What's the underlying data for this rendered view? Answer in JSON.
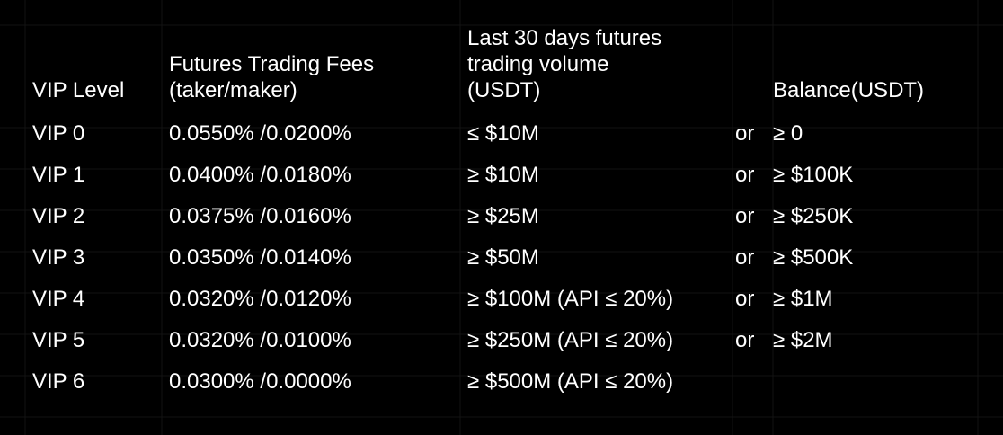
{
  "colors": {
    "background": "#000000",
    "text": "#ffffff",
    "gridlines": "#121212"
  },
  "table": {
    "headers": {
      "level": "VIP Level",
      "fees_line1": "Futures Trading Fees",
      "fees_line2": "(taker/maker)",
      "volume_line1": "Last 30 days futures",
      "volume_line2": "trading volume",
      "volume_line3": "(USDT)",
      "or": "",
      "balance": "Balance(USDT)"
    },
    "rows": [
      {
        "level": "VIP 0",
        "fees": "0.0550% /0.0200%",
        "volume": "≤ $10M",
        "or": "or",
        "balance": "≥ 0"
      },
      {
        "level": "VIP 1",
        "fees": "0.0400% /0.0180%",
        "volume": "≥ $10M",
        "or": "or",
        "balance": "≥ $100K"
      },
      {
        "level": "VIP 2",
        "fees": "0.0375% /0.0160%",
        "volume": "≥ $25M",
        "or": "or",
        "balance": "≥ $250K"
      },
      {
        "level": "VIP 3",
        "fees": "0.0350% /0.0140%",
        "volume": "≥ $50M",
        "or": "or",
        "balance": "≥ $500K"
      },
      {
        "level": "VIP 4",
        "fees": "0.0320% /0.0120%",
        "volume": "≥ $100M (API ≤ 20%)",
        "or": "or",
        "balance": "≥ $1M"
      },
      {
        "level": "VIP 5",
        "fees": "0.0320% /0.0100%",
        "volume": "≥ $250M (API ≤ 20%)",
        "or": "or",
        "balance": "≥ $2M"
      },
      {
        "level": "VIP 6",
        "fees": "0.0300% /0.0000%",
        "volume": "≥ $500M (API ≤ 20%)",
        "or": "",
        "balance": ""
      }
    ]
  }
}
